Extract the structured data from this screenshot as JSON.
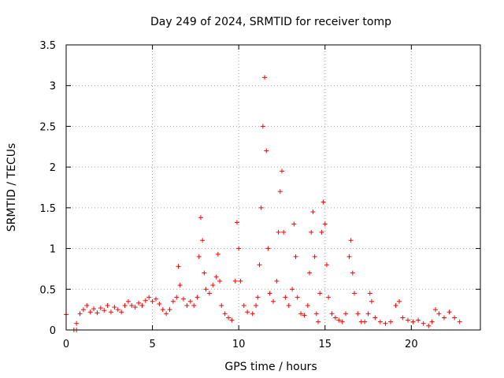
{
  "chart_data": {
    "type": "scatter",
    "title": "Day 249 of 2024, SRMTID for receiver tomp",
    "xlabel": "GPS time / hours",
    "ylabel": "SRMTID / TECUs",
    "xlim": [
      0,
      24
    ],
    "ylim": [
      0,
      3.5
    ],
    "xticks": [
      0,
      5,
      10,
      15,
      20
    ],
    "yticks": [
      0,
      0.5,
      1,
      1.5,
      2,
      2.5,
      3,
      3.5
    ],
    "xtick_labels": [
      "0",
      "5",
      "10",
      "15",
      "20"
    ],
    "ytick_labels": [
      "0",
      "0.5",
      "1",
      "1.5",
      "2",
      "2.5",
      "3",
      "3.5"
    ],
    "grid": true,
    "marker": "+",
    "color": "#ff0000",
    "series": [
      {
        "name": "SRMTID",
        "points": [
          [
            0.0,
            0.19
          ],
          [
            0.45,
            0.0
          ],
          [
            0.6,
            0.0
          ],
          [
            0.6,
            0.08
          ],
          [
            0.8,
            0.2
          ],
          [
            1.0,
            0.25
          ],
          [
            1.2,
            0.3
          ],
          [
            1.4,
            0.22
          ],
          [
            1.6,
            0.26
          ],
          [
            1.8,
            0.21
          ],
          [
            2.0,
            0.27
          ],
          [
            2.2,
            0.24
          ],
          [
            2.4,
            0.3
          ],
          [
            2.6,
            0.22
          ],
          [
            2.8,
            0.28
          ],
          [
            3.0,
            0.25
          ],
          [
            3.2,
            0.22
          ],
          [
            3.4,
            0.3
          ],
          [
            3.6,
            0.35
          ],
          [
            3.8,
            0.3
          ],
          [
            4.0,
            0.28
          ],
          [
            4.2,
            0.33
          ],
          [
            4.4,
            0.3
          ],
          [
            4.6,
            0.36
          ],
          [
            4.8,
            0.4
          ],
          [
            5.0,
            0.35
          ],
          [
            5.2,
            0.38
          ],
          [
            5.4,
            0.32
          ],
          [
            5.6,
            0.25
          ],
          [
            5.8,
            0.2
          ],
          [
            6.0,
            0.25
          ],
          [
            6.2,
            0.35
          ],
          [
            6.4,
            0.4
          ],
          [
            6.5,
            0.78
          ],
          [
            6.6,
            0.55
          ],
          [
            6.8,
            0.38
          ],
          [
            7.0,
            0.3
          ],
          [
            7.2,
            0.35
          ],
          [
            7.4,
            0.3
          ],
          [
            7.6,
            0.4
          ],
          [
            7.7,
            0.9
          ],
          [
            7.8,
            1.38
          ],
          [
            7.9,
            1.1
          ],
          [
            8.0,
            0.7
          ],
          [
            8.1,
            0.5
          ],
          [
            8.3,
            0.45
          ],
          [
            8.5,
            0.55
          ],
          [
            8.7,
            0.65
          ],
          [
            8.8,
            0.93
          ],
          [
            8.9,
            0.6
          ],
          [
            9.0,
            0.3
          ],
          [
            9.2,
            0.2
          ],
          [
            9.4,
            0.15
          ],
          [
            9.6,
            0.12
          ],
          [
            9.8,
            0.6
          ],
          [
            9.9,
            1.32
          ],
          [
            10.0,
            1.0
          ],
          [
            10.1,
            0.6
          ],
          [
            10.3,
            0.3
          ],
          [
            10.5,
            0.22
          ],
          [
            10.8,
            0.2
          ],
          [
            11.0,
            0.3
          ],
          [
            11.1,
            0.4
          ],
          [
            11.2,
            0.8
          ],
          [
            11.3,
            1.5
          ],
          [
            11.4,
            2.5
          ],
          [
            11.5,
            3.1
          ],
          [
            11.6,
            2.2
          ],
          [
            11.7,
            1.0
          ],
          [
            11.8,
            0.45
          ],
          [
            12.0,
            0.35
          ],
          [
            12.2,
            0.6
          ],
          [
            12.3,
            1.2
          ],
          [
            12.4,
            1.7
          ],
          [
            12.5,
            1.95
          ],
          [
            12.6,
            1.2
          ],
          [
            12.7,
            0.4
          ],
          [
            12.9,
            0.3
          ],
          [
            13.1,
            0.5
          ],
          [
            13.2,
            1.3
          ],
          [
            13.3,
            0.9
          ],
          [
            13.4,
            0.4
          ],
          [
            13.6,
            0.2
          ],
          [
            13.8,
            0.18
          ],
          [
            14.0,
            0.3
          ],
          [
            14.1,
            0.7
          ],
          [
            14.2,
            1.2
          ],
          [
            14.3,
            1.45
          ],
          [
            14.4,
            0.9
          ],
          [
            14.5,
            0.2
          ],
          [
            14.6,
            0.1
          ],
          [
            14.7,
            0.45
          ],
          [
            14.8,
            1.2
          ],
          [
            14.9,
            1.57
          ],
          [
            15.0,
            1.3
          ],
          [
            15.1,
            0.8
          ],
          [
            15.2,
            0.4
          ],
          [
            15.4,
            0.2
          ],
          [
            15.6,
            0.15
          ],
          [
            15.8,
            0.12
          ],
          [
            16.0,
            0.1
          ],
          [
            16.2,
            0.2
          ],
          [
            16.4,
            0.9
          ],
          [
            16.5,
            1.1
          ],
          [
            16.6,
            0.7
          ],
          [
            16.7,
            0.45
          ],
          [
            16.9,
            0.2
          ],
          [
            17.1,
            0.1
          ],
          [
            17.3,
            0.1
          ],
          [
            17.5,
            0.2
          ],
          [
            17.6,
            0.45
          ],
          [
            17.7,
            0.35
          ],
          [
            17.9,
            0.15
          ],
          [
            18.2,
            0.1
          ],
          [
            18.5,
            0.08
          ],
          [
            18.8,
            0.1
          ],
          [
            19.1,
            0.3
          ],
          [
            19.3,
            0.35
          ],
          [
            19.5,
            0.15
          ],
          [
            19.8,
            0.12
          ],
          [
            20.1,
            0.1
          ],
          [
            20.4,
            0.12
          ],
          [
            20.7,
            0.08
          ],
          [
            21.0,
            0.05
          ],
          [
            21.2,
            0.1
          ],
          [
            21.4,
            0.25
          ],
          [
            21.6,
            0.2
          ],
          [
            21.9,
            0.15
          ],
          [
            22.2,
            0.22
          ],
          [
            22.5,
            0.15
          ],
          [
            22.8,
            0.1
          ]
        ]
      }
    ]
  }
}
